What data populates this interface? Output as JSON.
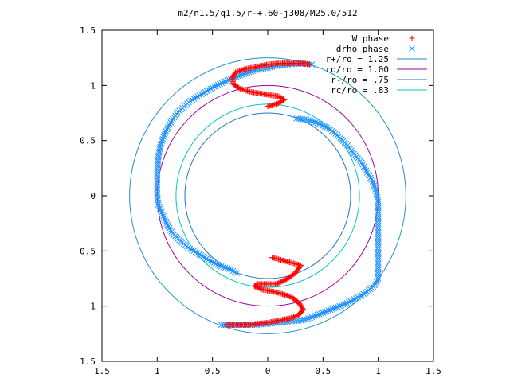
{
  "chart_data": {
    "type": "scatter",
    "title": "m2/n1.5/q1.5/r-+.60-j308/M25.0/512",
    "xlabel": "",
    "ylabel": "",
    "xlim": [
      -1.5,
      1.5
    ],
    "ylim": [
      -1.5,
      1.5
    ],
    "grid": false,
    "legend_position": "top-right",
    "x_ticks": [
      {
        "value": -1.5,
        "label": "1.5"
      },
      {
        "value": -1.0,
        "label": "1"
      },
      {
        "value": -0.5,
        "label": "0.5"
      },
      {
        "value": 0.0,
        "label": "0"
      },
      {
        "value": 0.5,
        "label": "0.5"
      },
      {
        "value": 1.0,
        "label": "1"
      },
      {
        "value": 1.5,
        "label": "1.5"
      }
    ],
    "y_ticks": [
      {
        "value": 1.5,
        "label": "1.5"
      },
      {
        "value": 1.0,
        "label": "1"
      },
      {
        "value": 0.5,
        "label": "0.5"
      },
      {
        "value": 0.0,
        "label": "0"
      },
      {
        "value": -0.5,
        "label": "0.5"
      },
      {
        "value": -1.0,
        "label": "1"
      },
      {
        "value": -1.5,
        "label": "1.5"
      }
    ],
    "series": [
      {
        "name": "W phase",
        "marker": "plus",
        "color": "#ff0000",
        "points": [
          [
            0.04,
            -0.56
          ],
          [
            0.3,
            -0.63
          ],
          [
            0.25,
            -0.7
          ],
          [
            0.18,
            -0.75
          ],
          [
            0.08,
            -0.8
          ],
          [
            -0.1,
            -0.8
          ],
          [
            -0.12,
            -0.82
          ],
          [
            -0.05,
            -0.85
          ],
          [
            0.1,
            -0.88
          ],
          [
            0.22,
            -0.92
          ],
          [
            0.29,
            -0.98
          ],
          [
            0.32,
            -1.03
          ],
          [
            0.28,
            -1.08
          ],
          [
            0.2,
            -1.11
          ],
          [
            0.1,
            -1.13
          ],
          [
            0.0,
            -1.15
          ],
          [
            -0.1,
            -1.16
          ],
          [
            -0.2,
            -1.17
          ],
          [
            -0.32,
            -1.17
          ],
          [
            -0.38,
            -1.17
          ],
          [
            0.38,
            1.19
          ],
          [
            0.3,
            1.2
          ],
          [
            0.2,
            1.2
          ],
          [
            0.1,
            1.2
          ],
          [
            0.0,
            1.19
          ],
          [
            -0.1,
            1.17
          ],
          [
            -0.2,
            1.15
          ],
          [
            -0.29,
            1.12
          ],
          [
            -0.32,
            1.07
          ],
          [
            -0.31,
            1.01
          ],
          [
            -0.25,
            0.97
          ],
          [
            -0.15,
            0.94
          ],
          [
            -0.02,
            0.92
          ],
          [
            0.1,
            0.9
          ],
          [
            0.15,
            0.87
          ],
          [
            0.1,
            0.84
          ],
          [
            0.04,
            0.82
          ],
          [
            0.0,
            0.81
          ]
        ]
      },
      {
        "name": "drho phase",
        "marker": "cross",
        "color": "#1e90ff",
        "points": [
          [
            0.4,
            1.19
          ],
          [
            0.3,
            1.2
          ],
          [
            0.2,
            1.19
          ],
          [
            0.1,
            1.18
          ],
          [
            0.0,
            1.16
          ],
          [
            -0.1,
            1.14
          ],
          [
            -0.2,
            1.11
          ],
          [
            -0.3,
            1.07
          ],
          [
            -0.4,
            1.03
          ],
          [
            -0.5,
            0.98
          ],
          [
            -0.6,
            0.92
          ],
          [
            -0.7,
            0.86
          ],
          [
            -0.8,
            0.77
          ],
          [
            -0.87,
            0.68
          ],
          [
            -0.93,
            0.57
          ],
          [
            -0.97,
            0.46
          ],
          [
            -0.99,
            0.35
          ],
          [
            -1.0,
            0.22
          ],
          [
            -1.0,
            0.1
          ],
          [
            -1.0,
            0.0
          ],
          [
            -0.99,
            -0.08
          ],
          [
            -0.96,
            -0.15
          ],
          [
            -0.93,
            -0.22
          ],
          [
            -0.9,
            -0.28
          ],
          [
            -0.86,
            -0.34
          ],
          [
            -0.8,
            -0.4
          ],
          [
            -0.72,
            -0.47
          ],
          [
            -0.62,
            -0.53
          ],
          [
            -0.52,
            -0.59
          ],
          [
            -0.42,
            -0.64
          ],
          [
            -0.33,
            -0.67
          ],
          [
            -0.28,
            -0.7
          ],
          [
            0.26,
            0.7
          ],
          [
            0.35,
            0.69
          ],
          [
            0.45,
            0.66
          ],
          [
            0.55,
            0.61
          ],
          [
            0.63,
            0.55
          ],
          [
            0.71,
            0.47
          ],
          [
            0.78,
            0.38
          ],
          [
            0.85,
            0.3
          ],
          [
            0.9,
            0.21
          ],
          [
            0.95,
            0.13
          ],
          [
            0.98,
            0.04
          ],
          [
            1.0,
            -0.05
          ],
          [
            1.0,
            -0.15
          ],
          [
            1.0,
            -0.25
          ],
          [
            1.0,
            -0.35
          ],
          [
            1.0,
            -0.45
          ],
          [
            1.0,
            -0.55
          ],
          [
            1.0,
            -0.65
          ],
          [
            1.0,
            -0.75
          ],
          [
            0.98,
            -0.8
          ],
          [
            0.9,
            -0.87
          ],
          [
            0.8,
            -0.93
          ],
          [
            0.7,
            -0.98
          ],
          [
            0.6,
            -1.02
          ],
          [
            0.5,
            -1.06
          ],
          [
            0.4,
            -1.1
          ],
          [
            0.3,
            -1.13
          ],
          [
            0.2,
            -1.14
          ],
          [
            0.1,
            -1.15
          ],
          [
            0.0,
            -1.16
          ],
          [
            -0.1,
            -1.17
          ],
          [
            -0.2,
            -1.17
          ],
          [
            -0.3,
            -1.17
          ],
          [
            -0.42,
            -1.17
          ]
        ]
      }
    ],
    "circles": [
      {
        "name": "r+/ro = 1.25",
        "label": "r+/ro = 1.25",
        "r": 1.25,
        "color": "#1e90c8"
      },
      {
        "name": "ro/ro = 1.00",
        "label": "ro/ro = 1.00",
        "r": 1.0,
        "color": "#a000a0"
      },
      {
        "name": "r-/ro = .75",
        "label": "r-/ro = .75",
        "r": 0.75,
        "color": "#1e78c8"
      },
      {
        "name": "rc/ro = .83",
        "label": "rc/ro = .83",
        "r": 0.83,
        "color": "#00c8c8"
      }
    ]
  }
}
